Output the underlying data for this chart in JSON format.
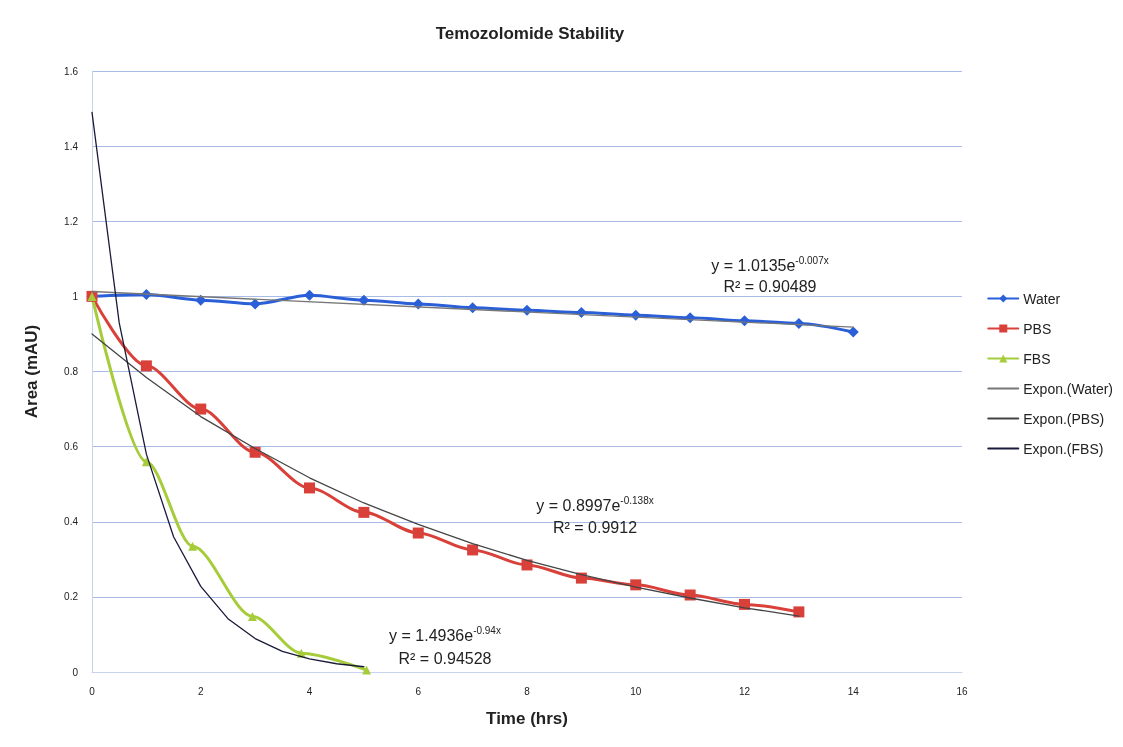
{
  "chart_data": {
    "type": "line",
    "title": "Temozolomide Stability",
    "xlabel": "Time (hrs)",
    "ylabel": "Area (mAU)",
    "xlim": [
      0,
      16
    ],
    "xticks": [
      0,
      2,
      4,
      6,
      8,
      10,
      12,
      14,
      16
    ],
    "ylim": [
      0,
      1.6
    ],
    "yticks": [
      0,
      0.2,
      0.4,
      0.6,
      0.8,
      1,
      1.2,
      1.4,
      1.6
    ],
    "grid": "y",
    "legend": "right",
    "line_style": "solid",
    "series": [
      {
        "name": "Water",
        "color": "#2a5fd8",
        "marker": "diamond",
        "x": [
          0,
          1,
          2,
          3,
          4,
          5,
          6,
          7,
          8,
          9,
          10,
          11,
          12,
          13,
          14
        ],
        "values": [
          1.0,
          1.005,
          0.99,
          0.98,
          1.003,
          0.99,
          0.98,
          0.97,
          0.963,
          0.957,
          0.95,
          0.943,
          0.935,
          0.928,
          0.905
        ]
      },
      {
        "name": "PBS",
        "color": "#d9403a",
        "marker": "square",
        "x": [
          0,
          1,
          2,
          3,
          4,
          5,
          6,
          7,
          8,
          9,
          10,
          11,
          12,
          13
        ],
        "values": [
          1.0,
          0.815,
          0.7,
          0.585,
          0.49,
          0.425,
          0.37,
          0.325,
          0.285,
          0.25,
          0.232,
          0.205,
          0.18,
          0.16
        ]
      },
      {
        "name": "FBS",
        "color": "#a6cc3a",
        "marker": "triangle",
        "x": [
          0,
          1,
          1.85,
          2.95,
          3.85,
          5.05
        ],
        "values": [
          1.0,
          0.56,
          0.335,
          0.148,
          0.05,
          0.005
        ]
      },
      {
        "name": "Expon.(Water)",
        "color": "#777777",
        "marker": "none",
        "x": [
          0,
          7,
          14
        ],
        "values": [
          1.013,
          0.965,
          0.918
        ]
      },
      {
        "name": "Expon.(PBS)",
        "color": "#444444",
        "marker": "none",
        "x": [
          0,
          1,
          2,
          3,
          4,
          5,
          6,
          7,
          8,
          9,
          10,
          11,
          12,
          13
        ],
        "values": [
          0.9,
          0.784,
          0.68,
          0.595,
          0.517,
          0.45,
          0.393,
          0.342,
          0.297,
          0.259,
          0.226,
          0.197,
          0.171,
          0.149
        ]
      },
      {
        "name": "Expon.(FBS)",
        "color": "#1a1a3a",
        "marker": "none",
        "x": [
          0,
          0.5,
          1,
          1.5,
          2,
          2.5,
          3,
          3.5,
          4,
          4.5,
          5
        ],
        "values": [
          1.49,
          0.93,
          0.58,
          0.36,
          0.228,
          0.142,
          0.089,
          0.055,
          0.035,
          0.022,
          0.014
        ]
      }
    ],
    "annotations": [
      "y = 1.0135e$^{-0.007x}$",
      "R² = 0.90489",
      "y = 0.8997e$^{-0.138x}$",
      "R² = 0.9912",
      "y = 1.4936e$^{-0.94x}$",
      "R² = 0.94528"
    ]
  }
}
